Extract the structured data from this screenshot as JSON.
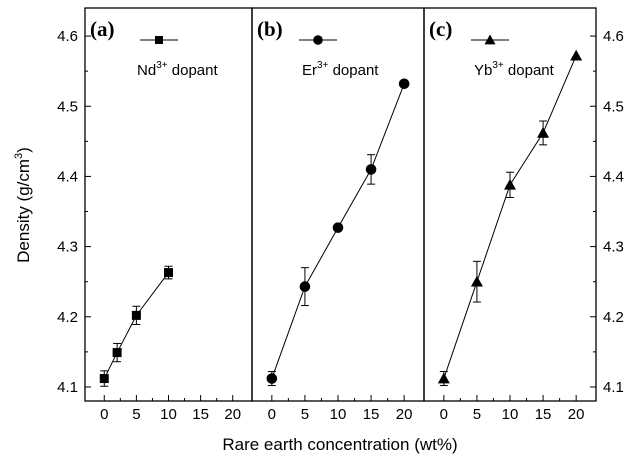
{
  "chart_data": {
    "type": "scatter",
    "ylabel": "Density (g/cm3)",
    "ylabel_base": "Density (g/cm",
    "ylabel_sup": "3",
    "ylabel_close": ")",
    "xlabel": "Rare earth concentration (wt%)",
    "ylim": [
      4.08,
      4.64
    ],
    "xlim": [
      -3,
      23
    ],
    "y_ticks": [
      "4.1",
      "4.2",
      "4.3",
      "4.4",
      "4.5",
      "4.6"
    ],
    "y_tick_values": [
      4.1,
      4.2,
      4.3,
      4.4,
      4.5,
      4.6
    ],
    "x_ticks": [
      "0",
      "5",
      "10",
      "15",
      "20"
    ],
    "x_tick_values": [
      0,
      5,
      10,
      15,
      20
    ],
    "panels": [
      {
        "letter": "(a)",
        "legend_base": "Nd",
        "legend_sup": "3+",
        "legend_suffix": " dopant",
        "marker": "square",
        "x": [
          0,
          2,
          5,
          10
        ],
        "y": [
          4.112,
          4.149,
          4.202,
          4.263
        ],
        "err": [
          0.011,
          0.013,
          0.013,
          0.009
        ]
      },
      {
        "letter": "(b)",
        "legend_base": "Er",
        "legend_sup": "3+",
        "legend_suffix": " dopant",
        "marker": "circle",
        "x": [
          0,
          5,
          10,
          15,
          20
        ],
        "y": [
          4.112,
          4.243,
          4.327,
          4.41,
          4.532
        ],
        "err": [
          0.01,
          0.027,
          0,
          0.021,
          0
        ]
      },
      {
        "letter": "(c)",
        "legend_base": "Yb",
        "legend_sup": "3+",
        "legend_suffix": " dopant",
        "marker": "triangle",
        "x": [
          0,
          5,
          10,
          15,
          20
        ],
        "y": [
          4.112,
          4.25,
          4.388,
          4.462,
          4.572
        ],
        "err": [
          0.01,
          0.029,
          0.018,
          0.017,
          0
        ]
      }
    ]
  }
}
